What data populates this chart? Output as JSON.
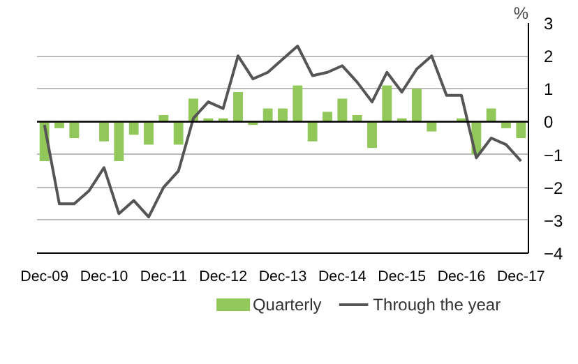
{
  "chart_data": {
    "type": "bar",
    "ylabel": "%",
    "categories": [
      "Dec-09",
      null,
      null,
      null,
      "Dec-10",
      null,
      null,
      null,
      "Dec-11",
      null,
      null,
      null,
      "Dec-12",
      null,
      null,
      null,
      "Dec-13",
      null,
      null,
      null,
      "Dec-14",
      null,
      null,
      null,
      "Dec-15",
      null,
      null,
      null,
      "Dec-16",
      null,
      null,
      null,
      "Dec-17"
    ],
    "series": [
      {
        "name": "Quarterly",
        "color": "#92c85a",
        "values": [
          -1.2,
          -0.2,
          -0.5,
          0,
          -0.6,
          -1.2,
          -0.4,
          -0.7,
          0.2,
          -0.7,
          0.7,
          0.1,
          0.1,
          0.9,
          -0.1,
          0.4,
          0.4,
          1.1,
          -0.6,
          0.3,
          0.7,
          0.2,
          -0.8,
          1.1,
          0.1,
          1.0,
          -0.3,
          0,
          0.1,
          -1.0,
          0.4,
          -0.2,
          -0.5
        ]
      },
      {
        "name": "Through the year",
        "type": "line",
        "color": "#555555",
        "values": [
          -0.1,
          -2.5,
          -2.5,
          -2.1,
          -1.4,
          -2.8,
          -2.4,
          -2.9,
          -2.0,
          -1.5,
          0.1,
          0.6,
          0.4,
          2.0,
          1.3,
          1.5,
          1.9,
          2.3,
          1.4,
          1.5,
          1.7,
          1.2,
          0.6,
          1.5,
          0.9,
          1.6,
          2.0,
          0.8,
          0.8,
          -1.1,
          -0.5,
          -0.7,
          -1.2
        ]
      }
    ],
    "ylim": [
      -4,
      3
    ],
    "yticks": [
      -4,
      -3,
      -2,
      -1,
      0,
      1,
      2,
      3
    ],
    "grid": "y",
    "legend": "bottom",
    "line_style": "solid",
    "marker": "none"
  }
}
